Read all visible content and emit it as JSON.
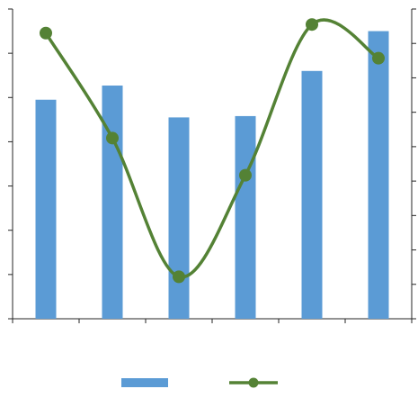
{
  "chart_data": {
    "type": "bar",
    "title": "",
    "xlabel": "",
    "ylabel": "",
    "categories": [
      "",
      "",
      "",
      "",
      "",
      ""
    ],
    "series": [
      {
        "type": "bar",
        "axis": "left",
        "values": [
          4.95,
          5.27,
          4.55,
          4.58,
          5.6,
          6.5
        ],
        "color": "#5b9bd5"
      },
      {
        "type": "line",
        "axis": "right",
        "smooth": true,
        "marker": "circle",
        "values": [
          8.3,
          5.25,
          1.22,
          4.17,
          8.55,
          7.57
        ],
        "color": "#548235"
      }
    ],
    "ylim_left": [
      0,
      7
    ],
    "ylim_right": [
      0,
      9
    ],
    "left_ticks": 7,
    "right_ticks": 9,
    "grid": false,
    "legend_position": "bottom"
  }
}
